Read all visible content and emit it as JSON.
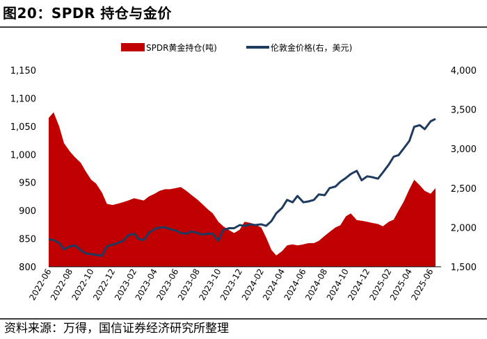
{
  "figure": {
    "title": "图20：SPDR 持仓与金价",
    "source": "资料来源：万得，国信证券经济研究所整理"
  },
  "chart_data": {
    "type": "area+line",
    "legend": [
      "SPDR黄金持仓(吨)",
      "伦敦金价格(右，美元)"
    ],
    "legend_position": "top",
    "grid": false,
    "colors": {
      "holdings": "#c00000",
      "price": "#1f3a5f"
    },
    "x_tick_labels": [
      "2022-06",
      "2022-08",
      "2022-10",
      "2022-12",
      "2023-02",
      "2023-04",
      "2023-06",
      "2023-08",
      "2023-10",
      "2023-12",
      "2024-02",
      "2024-04",
      "2024-06",
      "2024-08",
      "2024-10",
      "2024-12",
      "2025-02",
      "2025-04",
      "2025-06"
    ],
    "y_left_ticks": [
      "1,150",
      "1,100",
      "1,050",
      "1,000",
      "950",
      "900",
      "850",
      "800"
    ],
    "y_right_ticks": [
      "4,000",
      "3,500",
      "3,000",
      "2,500",
      "2,000",
      "1,500"
    ],
    "y_left_range": [
      800,
      1150
    ],
    "y_right_range": [
      1500,
      4000
    ],
    "series": [
      {
        "name": "SPDR黄金持仓(吨)",
        "axis": "left",
        "x": [
          "2022-06-01",
          "2022-06-15",
          "2022-07-01",
          "2022-07-15",
          "2022-08-01",
          "2022-08-15",
          "2022-09-01",
          "2022-09-15",
          "2022-10-01",
          "2022-10-15",
          "2022-11-01",
          "2022-11-15",
          "2022-12-01",
          "2022-12-15",
          "2023-01-01",
          "2023-01-15",
          "2023-02-01",
          "2023-02-15",
          "2023-03-01",
          "2023-03-15",
          "2023-04-01",
          "2023-04-15",
          "2023-05-01",
          "2023-05-15",
          "2023-06-01",
          "2023-06-15",
          "2023-07-01",
          "2023-07-15",
          "2023-08-01",
          "2023-08-15",
          "2023-09-01",
          "2023-09-15",
          "2023-10-01",
          "2023-10-15",
          "2023-11-01",
          "2023-11-15",
          "2023-12-01",
          "2023-12-15",
          "2024-01-01",
          "2024-01-15",
          "2024-02-01",
          "2024-02-15",
          "2024-03-01",
          "2024-03-15",
          "2024-04-01",
          "2024-04-15",
          "2024-05-01",
          "2024-05-15",
          "2024-06-01",
          "2024-06-15",
          "2024-07-01",
          "2024-07-15",
          "2024-08-01",
          "2024-08-15",
          "2024-09-01",
          "2024-09-15",
          "2024-10-01",
          "2024-10-15",
          "2024-11-01",
          "2024-11-15",
          "2024-12-01",
          "2024-12-15",
          "2025-01-01",
          "2025-01-15",
          "2025-02-01",
          "2025-02-15",
          "2025-03-01",
          "2025-03-15",
          "2025-04-01",
          "2025-04-15",
          "2025-05-01",
          "2025-05-15",
          "2025-06-01",
          "2025-06-15"
        ],
        "values": [
          1065,
          1075,
          1050,
          1020,
          1005,
          995,
          985,
          970,
          955,
          948,
          932,
          912,
          910,
          912,
          915,
          918,
          922,
          920,
          918,
          925,
          930,
          935,
          938,
          938,
          940,
          942,
          935,
          928,
          920,
          912,
          902,
          895,
          880,
          872,
          865,
          860,
          866,
          880,
          878,
          875,
          870,
          852,
          830,
          820,
          828,
          838,
          840,
          838,
          840,
          842,
          842,
          846,
          855,
          862,
          870,
          874,
          890,
          895,
          883,
          882,
          880,
          878,
          876,
          872,
          880,
          884,
          900,
          915,
          938,
          955,
          945,
          935,
          930,
          940
        ]
      },
      {
        "name": "伦敦金价格(右，美元)",
        "axis": "right",
        "x": [
          "2022-06-01",
          "2022-06-15",
          "2022-07-01",
          "2022-07-15",
          "2022-08-01",
          "2022-08-15",
          "2022-09-01",
          "2022-09-15",
          "2022-10-01",
          "2022-10-15",
          "2022-11-01",
          "2022-11-15",
          "2022-12-01",
          "2022-12-15",
          "2023-01-01",
          "2023-01-15",
          "2023-02-01",
          "2023-02-15",
          "2023-03-01",
          "2023-03-15",
          "2023-04-01",
          "2023-04-15",
          "2023-05-01",
          "2023-05-15",
          "2023-06-01",
          "2023-06-15",
          "2023-07-01",
          "2023-07-15",
          "2023-08-01",
          "2023-08-15",
          "2023-09-01",
          "2023-09-15",
          "2023-10-01",
          "2023-10-15",
          "2023-11-01",
          "2023-11-15",
          "2023-12-01",
          "2023-12-15",
          "2024-01-01",
          "2024-01-15",
          "2024-02-01",
          "2024-02-15",
          "2024-03-01",
          "2024-03-15",
          "2024-04-01",
          "2024-04-15",
          "2024-05-01",
          "2024-05-15",
          "2024-06-01",
          "2024-06-15",
          "2024-07-01",
          "2024-07-15",
          "2024-08-01",
          "2024-08-15",
          "2024-09-01",
          "2024-09-15",
          "2024-10-01",
          "2024-10-15",
          "2024-11-01",
          "2024-11-15",
          "2024-12-01",
          "2024-12-15",
          "2025-01-01",
          "2025-01-15",
          "2025-02-01",
          "2025-02-15",
          "2025-03-01",
          "2025-03-15",
          "2025-04-01",
          "2025-04-15",
          "2025-05-01",
          "2025-05-15",
          "2025-06-01",
          "2025-06-15"
        ],
        "values": [
          1850,
          1840,
          1800,
          1720,
          1760,
          1770,
          1710,
          1670,
          1660,
          1650,
          1640,
          1760,
          1780,
          1800,
          1830,
          1900,
          1920,
          1850,
          1840,
          1930,
          1980,
          2000,
          2000,
          1980,
          1960,
          1930,
          1920,
          1950,
          1930,
          1910,
          1920,
          1920,
          1830,
          1970,
          1990,
          1990,
          2030,
          2020,
          2040,
          2030,
          2040,
          2020,
          2080,
          2180,
          2250,
          2350,
          2320,
          2400,
          2320,
          2330,
          2350,
          2420,
          2410,
          2500,
          2520,
          2580,
          2630,
          2680,
          2720,
          2600,
          2650,
          2640,
          2620,
          2700,
          2800,
          2900,
          2920,
          3000,
          3100,
          3280,
          3300,
          3250,
          3350,
          3380
        ]
      }
    ]
  }
}
